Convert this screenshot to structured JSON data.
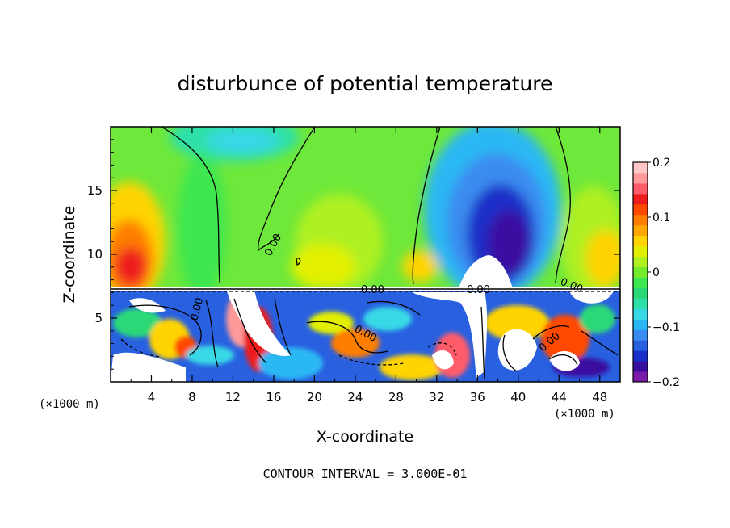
{
  "chart_data": {
    "type": "heatmap",
    "title": "disturbunce of potential temperature",
    "xlabel": "X-coordinate",
    "ylabel": "Z-coordinate",
    "x_unit": "(×1000 m)",
    "y_unit": "(×1000 m)",
    "xlim": [
      0,
      50
    ],
    "ylim": [
      0,
      20
    ],
    "x_ticks": [
      4,
      8,
      12,
      16,
      20,
      24,
      28,
      32,
      36,
      40,
      44,
      48
    ],
    "y_ticks": [
      5,
      10,
      15
    ],
    "colorbar": {
      "min": -0.2,
      "max": 0.2,
      "ticks": [
        0.2,
        0.1,
        0,
        -0.1,
        -0.2
      ],
      "tick_labels": [
        "0.2",
        "0.1",
        "0",
        "−0.1",
        "−0.2"
      ],
      "colors": [
        "#7a1aa8",
        "#3a0fa0",
        "#1a2ec8",
        "#2860e0",
        "#3a8cf0",
        "#2ab8f4",
        "#38d8e6",
        "#2ee0a8",
        "#2ad878",
        "#3ee650",
        "#74ec2c",
        "#aef020",
        "#e2f000",
        "#ffd400",
        "#ffa800",
        "#ff7e00",
        "#ff4a00",
        "#ee1c1c",
        "#ff5c6a",
        "#ff9a9a",
        "#ffc6c6"
      ]
    },
    "contour_labels": [
      "0.00",
      "0.00",
      "0.00",
      "0.00",
      "0.00",
      "0.00",
      "0.00"
    ],
    "contour_interval_text": "CONTOUR INTERVAL = 3.000E-01"
  }
}
